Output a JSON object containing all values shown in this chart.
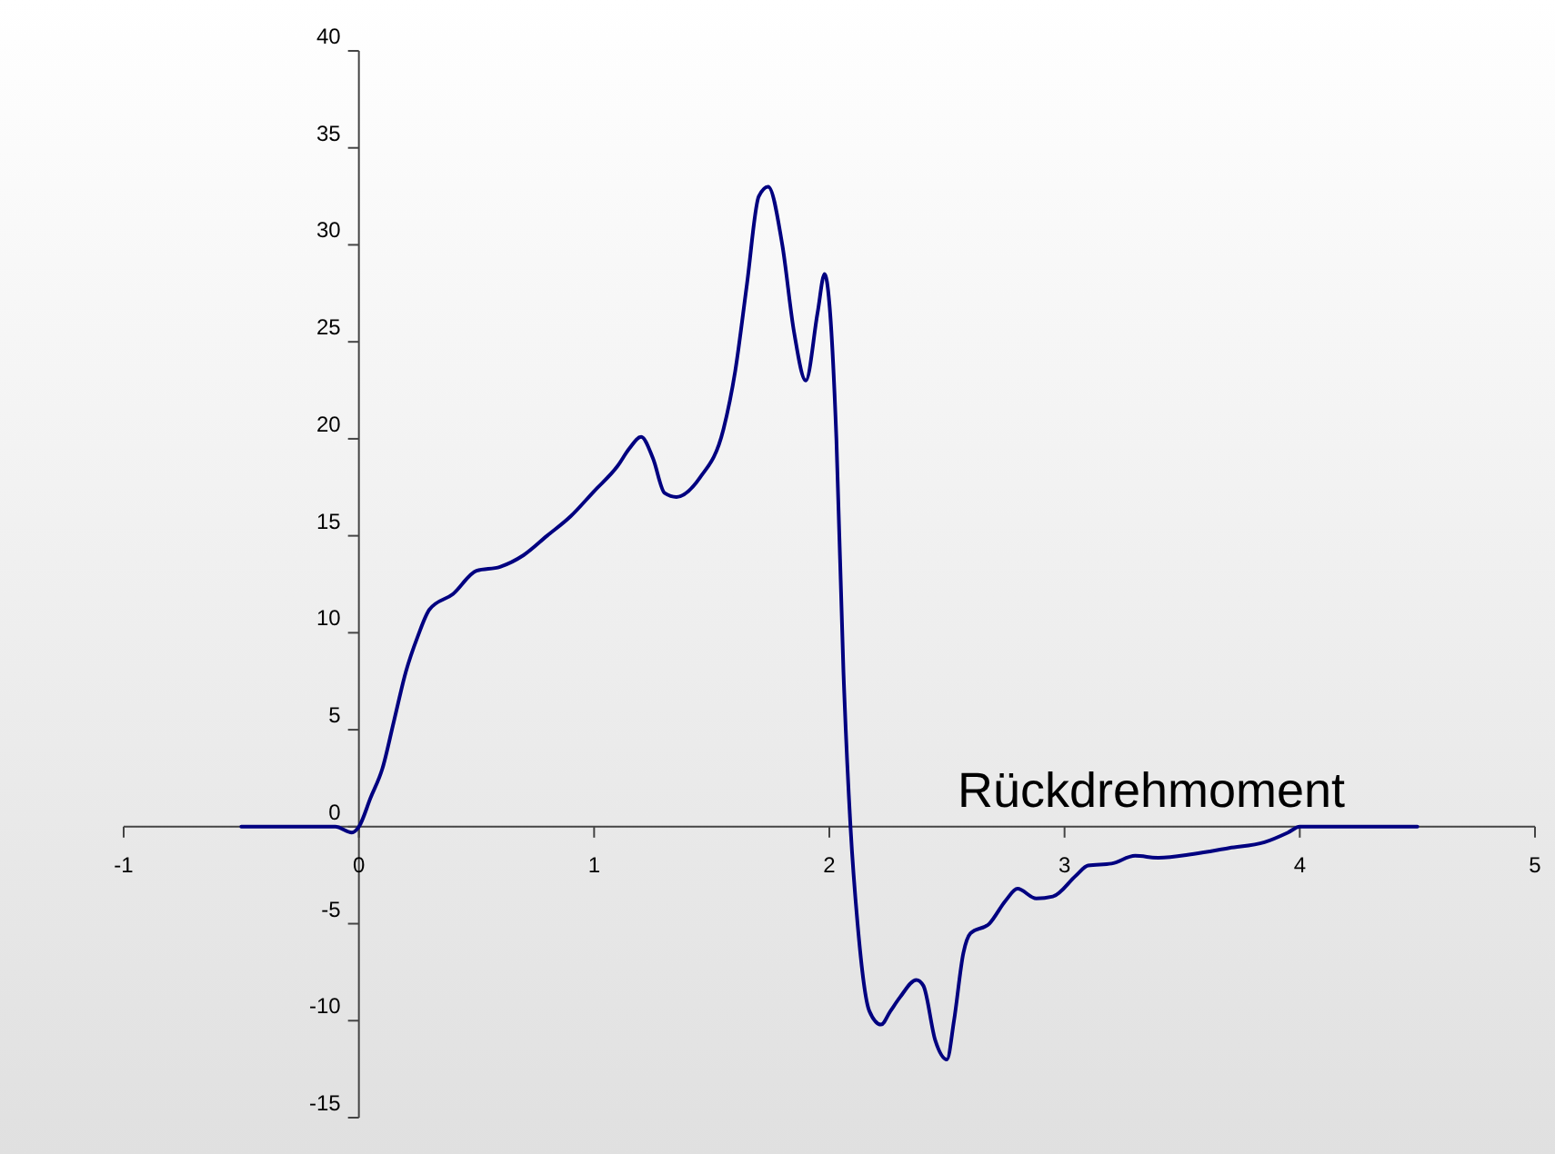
{
  "chart_data": {
    "type": "line",
    "title": "Rückdrehmoment",
    "x": [
      -0.5,
      -0.1,
      -0.03,
      0,
      0.05,
      0.1,
      0.15,
      0.2,
      0.25,
      0.3,
      0.4,
      0.5,
      0.6,
      0.7,
      0.8,
      0.9,
      1.0,
      1.1,
      1.15,
      1.2,
      1.25,
      1.3,
      1.35,
      1.45,
      1.55,
      1.6,
      1.65,
      1.7,
      1.74,
      1.8,
      1.85,
      1.9,
      1.95,
      1.98,
      2.0,
      2.03,
      2.06,
      2.09,
      2.12,
      2.17,
      2.22,
      2.26,
      2.3,
      2.37,
      2.4,
      2.45,
      2.5,
      2.53,
      2.57,
      2.6,
      2.68,
      2.75,
      2.8,
      2.88,
      2.95,
      3.05,
      3.1,
      3.2,
      3.3,
      3.4,
      3.55,
      3.7,
      3.85,
      3.95,
      4.0,
      4.5
    ],
    "series": [
      {
        "color": "#000080",
        "values": [
          0,
          0,
          -0.3,
          0,
          1.5,
          3,
          5.5,
          8,
          9.8,
          11.2,
          12,
          13.2,
          13.4,
          14,
          15,
          16,
          17.3,
          18.6,
          19.5,
          20.1,
          19,
          17.2,
          17,
          18,
          20.5,
          23.5,
          28,
          32.5,
          33,
          30,
          25.5,
          23,
          26.5,
          28.5,
          27,
          20,
          8,
          0,
          -5,
          -9.5,
          -10.2,
          -9.5,
          -8.8,
          -7.9,
          -8.2,
          -11,
          -12,
          -10,
          -6.5,
          -5.5,
          -5,
          -3.8,
          -3.2,
          -3.7,
          -3.6,
          -2.5,
          -2,
          -1.9,
          -1.5,
          -1.6,
          -1.4,
          -1.1,
          -0.8,
          -0.3,
          0,
          0
        ]
      }
    ],
    "xlim": [
      -1,
      5
    ],
    "xticks": [
      -1,
      0,
      1,
      2,
      3,
      4,
      5
    ],
    "ylim": [
      -15,
      40
    ],
    "yticks": [
      -15,
      -10,
      -5,
      0,
      5,
      10,
      15,
      20,
      25,
      30,
      35,
      40
    ],
    "grid": false,
    "marker": "none",
    "line_style": "solid"
  }
}
